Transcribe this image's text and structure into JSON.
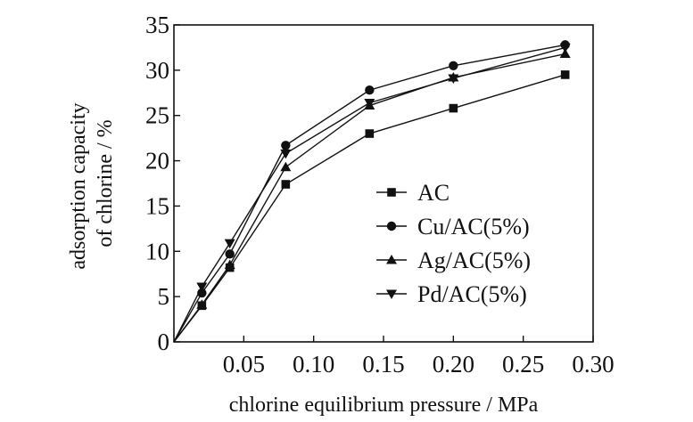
{
  "chart_data": {
    "type": "line",
    "title": "",
    "xlabel": "chlorine equilibrium pressure / MPa",
    "ylabel_line1": "adsorption capacity",
    "ylabel_line2": "of chlorine / %",
    "xlim": [
      0,
      0.3
    ],
    "ylim": [
      0,
      35
    ],
    "xticks": [
      0.05,
      0.1,
      0.15,
      0.2,
      0.25,
      0.3
    ],
    "xtick_labels": [
      "0.05",
      "0.10",
      "0.15",
      "0.20",
      "0.25",
      "0.30"
    ],
    "yticks": [
      0,
      5,
      10,
      15,
      20,
      25,
      30,
      35
    ],
    "ytick_labels": [
      "0",
      "5",
      "10",
      "15",
      "20",
      "25",
      "30",
      "35"
    ],
    "grid": false,
    "legend_position": "center-right",
    "x": [
      0,
      0.02,
      0.04,
      0.08,
      0.14,
      0.2,
      0.28
    ],
    "series": [
      {
        "name": "AC",
        "marker": "square",
        "values": [
          0,
          4.0,
          8.2,
          17.4,
          23.0,
          25.8,
          29.5
        ]
      },
      {
        "name": "Cu/AC(5%)",
        "marker": "circle",
        "values": [
          0,
          5.4,
          9.7,
          21.7,
          27.8,
          30.5,
          32.8
        ]
      },
      {
        "name": "Ag/AC(5%)",
        "marker": "triangle-up",
        "values": [
          0,
          4.1,
          8.5,
          19.3,
          26.1,
          29.2,
          31.8
        ]
      },
      {
        "name": "Pd/AC(5%)",
        "marker": "triangle-down",
        "values": [
          0,
          6.1,
          10.9,
          20.8,
          26.4,
          29.1,
          32.5
        ]
      }
    ]
  }
}
